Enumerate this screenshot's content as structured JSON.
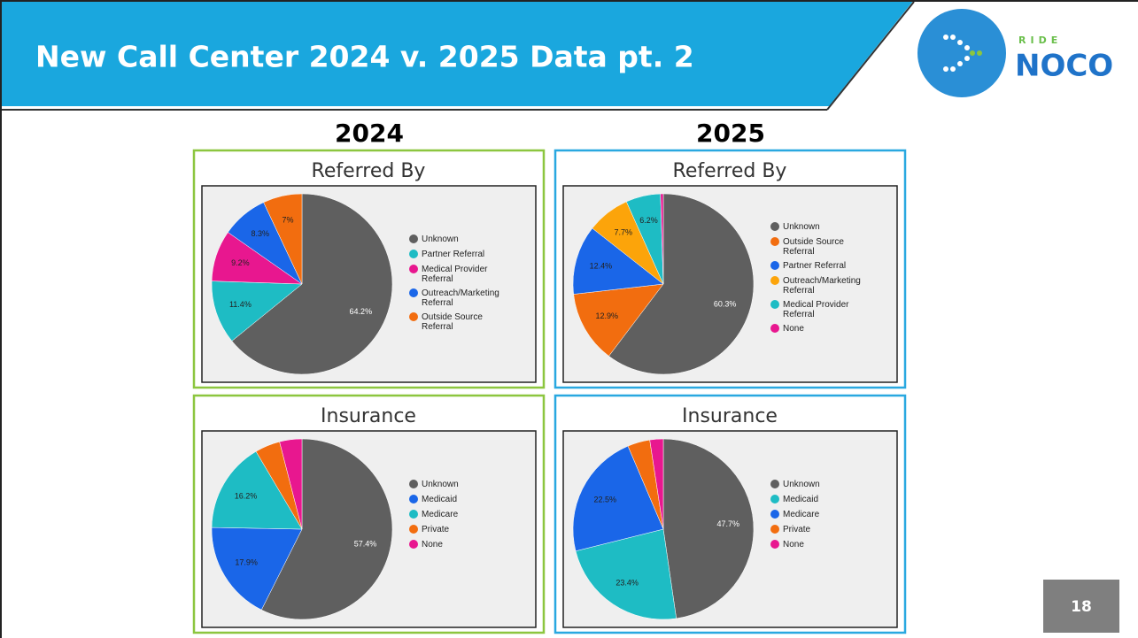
{
  "slide": {
    "title": "New Call Center 2024 v. 2025 Data pt. 2",
    "page_number": "18",
    "logo": {
      "top": "RIDE",
      "bottom": "NOCO"
    }
  },
  "columns": [
    "2024",
    "2025"
  ],
  "chart_data": [
    {
      "type": "pie",
      "title": "Referred By",
      "categories": [
        "Unknown",
        "Partner Referral",
        "Medical Provider Referral",
        "Outreach/Marketing Referral",
        "Outside Source Referral"
      ],
      "values": [
        64.2,
        11.4,
        9.2,
        8.3,
        7
      ],
      "value_labels": [
        "64.2%",
        "11.4%",
        "9.2%",
        "8.3%",
        "7%"
      ],
      "colors": [
        "#5f5f5f",
        "#1ebcc4",
        "#e8178f",
        "#1a66e8",
        "#f26d0f"
      ]
    },
    {
      "type": "pie",
      "title": "Referred By",
      "categories": [
        "Unknown",
        "Outside Source Referral",
        "Partner Referral",
        "Outreach/Marketing Referral",
        "Medical Provider Referral",
        "None"
      ],
      "values": [
        60.3,
        12.9,
        12.4,
        7.7,
        6.2,
        0.5
      ],
      "value_labels": [
        "60.3%",
        "12.9%",
        "12.4%",
        "7.7%",
        "6.2%",
        null
      ],
      "colors": [
        "#5f5f5f",
        "#f26d0f",
        "#1a66e8",
        "#fca40a",
        "#1ebcc4",
        "#e8178f"
      ]
    },
    {
      "type": "pie",
      "title": "Insurance",
      "categories": [
        "Unknown",
        "Medicaid",
        "Medicare",
        "Private",
        "None"
      ],
      "values": [
        57.4,
        17.9,
        16.2,
        4.5,
        4
      ],
      "value_labels": [
        "57.4%",
        "17.9%",
        "16.2%",
        null,
        null
      ],
      "colors": [
        "#5f5f5f",
        "#1a66e8",
        "#1ebcc4",
        "#f26d0f",
        "#e8178f"
      ]
    },
    {
      "type": "pie",
      "title": "Insurance",
      "categories": [
        "Unknown",
        "Medicaid",
        "Medicare",
        "Private",
        "None"
      ],
      "values": [
        47.7,
        23.4,
        22.5,
        4,
        2.4
      ],
      "value_labels": [
        "47.7%",
        "23.4%",
        "22.5%",
        null,
        null
      ],
      "colors": [
        "#5f5f5f",
        "#1ebcc4",
        "#1a66e8",
        "#f26d0f",
        "#e8178f"
      ]
    }
  ]
}
